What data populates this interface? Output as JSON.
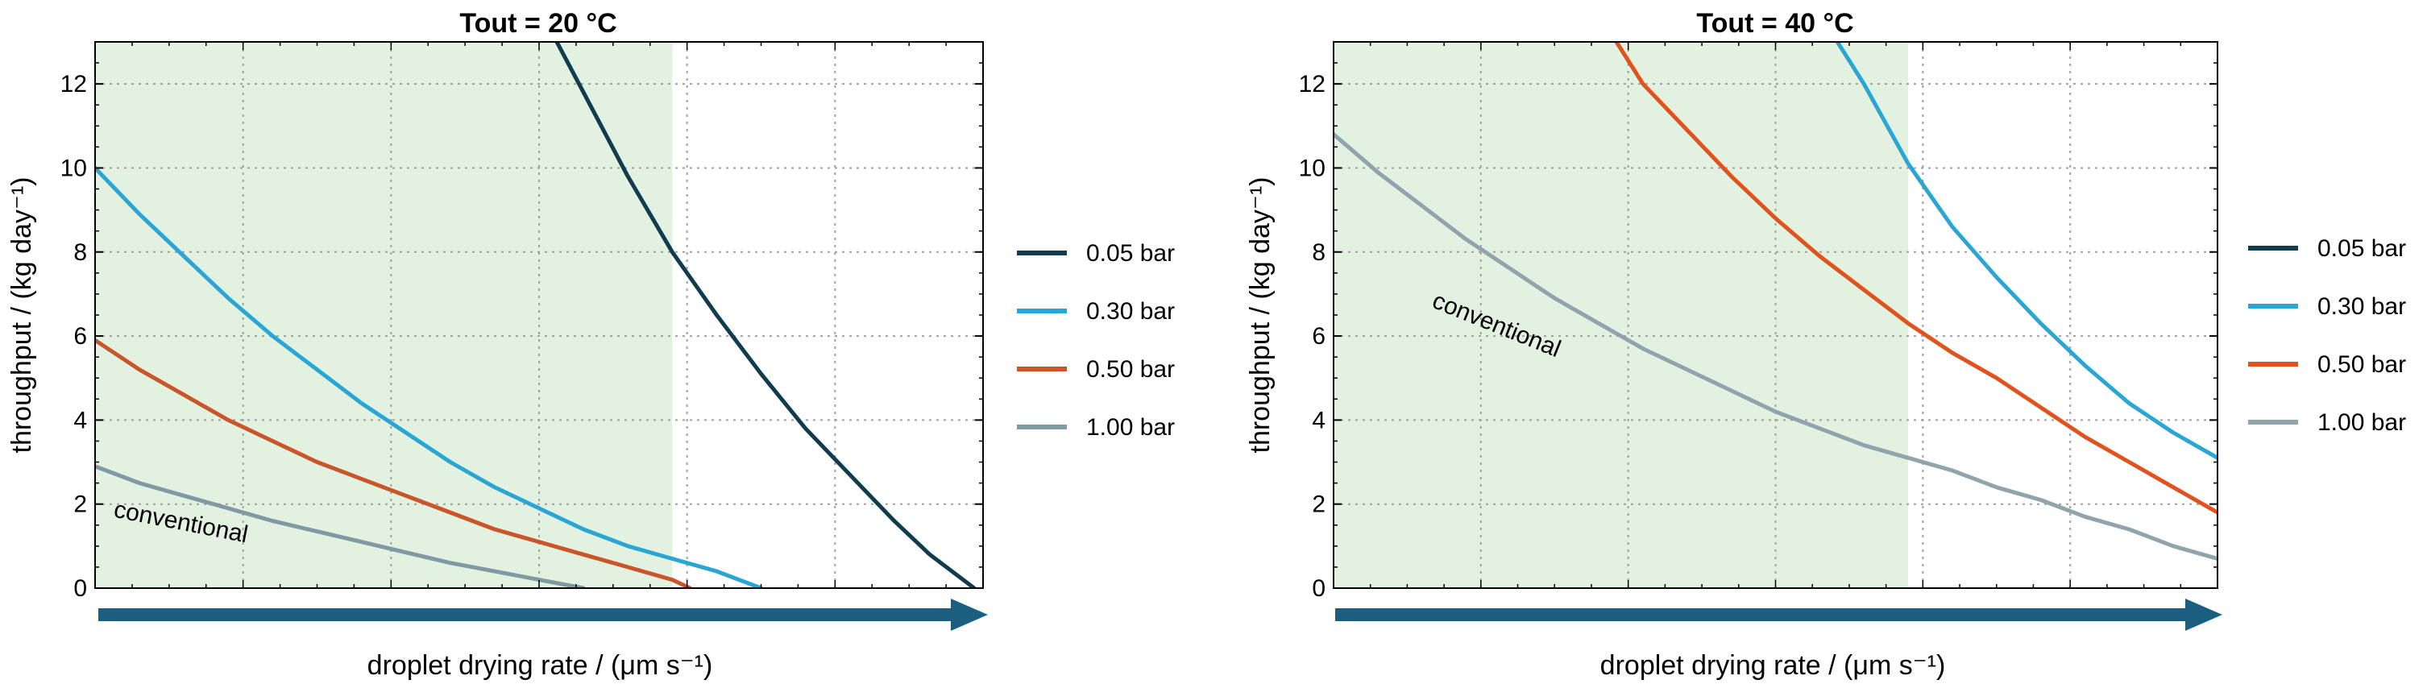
{
  "chart_data": [
    {
      "type": "line",
      "title": "Tout = 20 °C",
      "xlabel": "droplet drying rate / (μm s⁻¹)",
      "ylabel": "throughput / (kg day⁻¹)",
      "xlim": [
        0,
        1
      ],
      "ylim": [
        0,
        13
      ],
      "yticks": [
        0,
        2,
        4,
        6,
        8,
        10,
        12
      ],
      "xtick_labels": [],
      "grid": true,
      "shaded_region_x": [
        0,
        0.65
      ],
      "shade_color": "#e3f2e0",
      "legend_position": "right",
      "annotation": {
        "text": "conventional",
        "x": 0.02,
        "y": 1.7,
        "angle_deg": 11
      },
      "arrow_color": "#1b5e80",
      "series": [
        {
          "name": "0.05 bar",
          "color": "#103c4e",
          "x": [
            0.52,
            0.55,
            0.6,
            0.65,
            0.7,
            0.75,
            0.8,
            0.85,
            0.9,
            0.94,
            0.99
          ],
          "y": [
            13.0,
            11.8,
            9.8,
            8.0,
            6.5,
            5.1,
            3.8,
            2.7,
            1.6,
            0.8,
            0.0
          ]
        },
        {
          "name": "0.30 bar",
          "color": "#2aa6d4",
          "x": [
            0.0,
            0.05,
            0.1,
            0.15,
            0.2,
            0.25,
            0.3,
            0.35,
            0.4,
            0.45,
            0.5,
            0.55,
            0.6,
            0.65,
            0.7,
            0.75
          ],
          "y": [
            10.0,
            8.9,
            7.9,
            6.9,
            6.0,
            5.2,
            4.4,
            3.7,
            3.0,
            2.4,
            1.9,
            1.4,
            1.0,
            0.7,
            0.4,
            0.0
          ]
        },
        {
          "name": "0.50 bar",
          "color": "#c8562a",
          "x": [
            0.0,
            0.05,
            0.1,
            0.15,
            0.2,
            0.25,
            0.3,
            0.35,
            0.4,
            0.45,
            0.5,
            0.55,
            0.6,
            0.65,
            0.67
          ],
          "y": [
            5.9,
            5.2,
            4.6,
            4.0,
            3.5,
            3.0,
            2.6,
            2.2,
            1.8,
            1.4,
            1.1,
            0.8,
            0.5,
            0.2,
            0.0
          ]
        },
        {
          "name": "1.00 bar",
          "color": "#7f9aa3",
          "x": [
            0.0,
            0.05,
            0.1,
            0.15,
            0.2,
            0.25,
            0.3,
            0.35,
            0.4,
            0.45,
            0.5,
            0.55
          ],
          "y": [
            2.9,
            2.5,
            2.2,
            1.9,
            1.6,
            1.35,
            1.1,
            0.85,
            0.6,
            0.4,
            0.2,
            0.0
          ]
        }
      ]
    },
    {
      "type": "line",
      "title": "Tout = 40 °C",
      "xlabel": "droplet drying rate / (μm s⁻¹)",
      "ylabel": "throughput / (kg day⁻¹)",
      "xlim": [
        0,
        1
      ],
      "ylim": [
        0,
        13
      ],
      "yticks": [
        0,
        2,
        4,
        6,
        8,
        10,
        12
      ],
      "xtick_labels": [],
      "grid": true,
      "shaded_region_x": [
        0,
        0.65
      ],
      "shade_color": "#e3f2e0",
      "legend_position": "right",
      "annotation": {
        "text": "conventional",
        "x": 0.11,
        "y": 6.7,
        "angle_deg": 22
      },
      "arrow_color": "#1b5e80",
      "series": [
        {
          "name": "0.05 bar",
          "color": "#103c4e",
          "x": [],
          "y": []
        },
        {
          "name": "0.30 bar",
          "color": "#2aa6d4",
          "x": [
            0.57,
            0.6,
            0.65,
            0.7,
            0.75,
            0.8,
            0.85,
            0.9,
            0.95,
            1.0
          ],
          "y": [
            13.0,
            12.0,
            10.1,
            8.6,
            7.4,
            6.3,
            5.3,
            4.4,
            3.7,
            3.1
          ]
        },
        {
          "name": "0.50 bar",
          "color": "#e0531f",
          "x": [
            0.32,
            0.35,
            0.4,
            0.45,
            0.5,
            0.55,
            0.6,
            0.65,
            0.7,
            0.75,
            0.8,
            0.85,
            0.9,
            0.95,
            1.0
          ],
          "y": [
            13.0,
            12.0,
            10.9,
            9.8,
            8.8,
            7.9,
            7.1,
            6.3,
            5.6,
            5.0,
            4.3,
            3.6,
            3.0,
            2.4,
            1.8
          ]
        },
        {
          "name": "1.00 bar",
          "color": "#8fa4ac",
          "x": [
            0.0,
            0.05,
            0.1,
            0.15,
            0.2,
            0.25,
            0.3,
            0.35,
            0.4,
            0.45,
            0.5,
            0.55,
            0.6,
            0.65,
            0.7,
            0.75,
            0.8,
            0.85,
            0.9,
            0.95,
            1.0
          ],
          "y": [
            10.8,
            9.9,
            9.1,
            8.3,
            7.6,
            6.9,
            6.3,
            5.7,
            5.2,
            4.7,
            4.2,
            3.8,
            3.4,
            3.1,
            2.8,
            2.4,
            2.1,
            1.7,
            1.4,
            1.0,
            0.7
          ]
        }
      ]
    }
  ]
}
